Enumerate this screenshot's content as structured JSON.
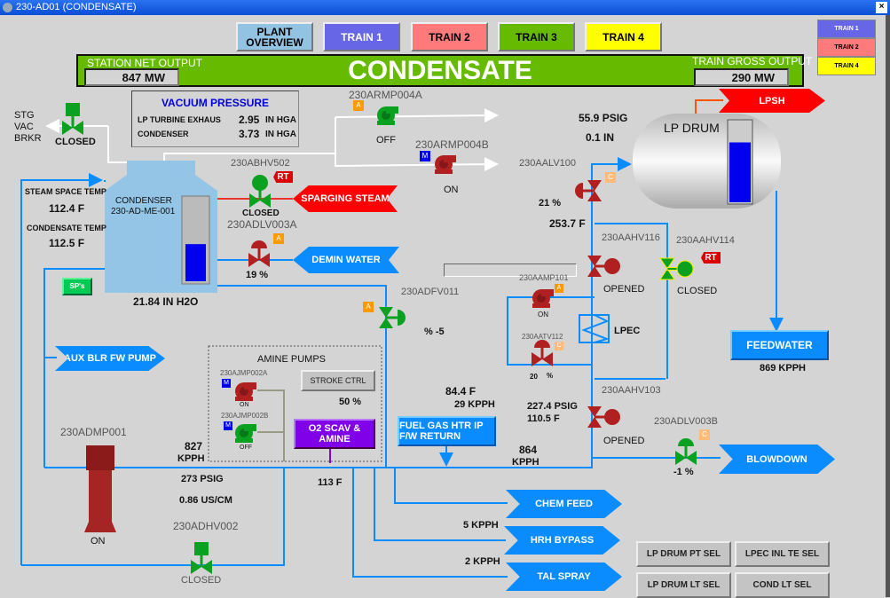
{
  "window": {
    "title": "230-AD01 (CONDENSATE)",
    "close": "×"
  },
  "nav": {
    "plant_overview": "PLANT OVERVIEW",
    "train1": "TRAIN 1",
    "train2": "TRAIN 2",
    "train3": "TRAIN 3",
    "train4": "TRAIN 4",
    "mini": [
      "TRAIN 1",
      "TRAIN 2",
      "TRAIN 4"
    ]
  },
  "colors": {
    "plant_overview": "#93c3e3",
    "train1": "#6666e6",
    "train2": "#ff7b7b",
    "train3": "#66bb00",
    "train4": "#ffff00",
    "pipe_blue": "#0a8cff",
    "valve_green": "#0aa020",
    "valve_red": "#b02020"
  },
  "banner": {
    "title": "CONDENSATE",
    "station_label": "STATION NET OUTPUT",
    "station_value": "847  MW",
    "gross_label": "TRAIN GROSS OUTPUT",
    "gross_value": "290  MW"
  },
  "vacuum": {
    "title": "VACUUM PRESSURE",
    "rows": [
      {
        "label": "LP TURBINE EXHAUS",
        "value": "2.95",
        "unit": "IN HGA"
      },
      {
        "label": "CONDENSER",
        "value": "3.73",
        "unit": "IN HGA"
      }
    ]
  },
  "stg": {
    "label1": "STG",
    "label2": "VAC",
    "label3": "BRKR",
    "status": "CLOSED"
  },
  "condenser": {
    "name": "CONDENSER",
    "tag": "230-AD-ME-001",
    "level_text": "21.84  IN H2O",
    "level_fraction": 0.45,
    "steam_label": "STEAM SPACE TEMP",
    "steam_value": "112.4 F",
    "cond_label": "CONDENSATE TEMP",
    "cond_value": "112.5 F",
    "sps": "SP's"
  },
  "armp004a": {
    "tag": "230ARMP004A",
    "mode": "A",
    "status": "OFF"
  },
  "armp004b": {
    "tag": "230ARMP004B",
    "mode": "M",
    "status": "ON"
  },
  "abhv502": {
    "tag": "230ABHV502",
    "rt": "RT",
    "status": "CLOSED",
    "source": "SPARGING STEAM"
  },
  "adlv003a": {
    "tag": "230ADLV003A",
    "mode": "A",
    "value": "19  %",
    "source": "DEMIN WATER"
  },
  "adfv011": {
    "tag": "230ADFV011",
    "mode": "A",
    "value": "%  -5"
  },
  "aux": "AUX BLR FW PUMP",
  "amine": {
    "title": "AMINE PUMPS",
    "pump_a": {
      "tag": "230AJMP002A",
      "mode": "M",
      "status": "ON"
    },
    "pump_b": {
      "tag": "230AJMP002B",
      "mode": "M",
      "status": "OFF"
    },
    "stroke": "STROKE CTRL",
    "stroke_value": "50 %",
    "o2": "O2 SCAV & AMINE"
  },
  "admp001": {
    "tag": "230ADMP001",
    "status": "ON",
    "flow": "827",
    "flow_unit": "KPPH",
    "pressure": "273  PSIG",
    "conductivity": "0.86  US/CM"
  },
  "adhv002": {
    "tag": "230ADHV002",
    "status": "CLOSED"
  },
  "header_temp": "113  F",
  "fuel_gas": {
    "label": "FUEL GAS HTR IP F/W RETURN",
    "temp": "84.4 F",
    "flow": "29  KPPH"
  },
  "flow864": {
    "value": "864",
    "unit": "KPPH"
  },
  "branches": {
    "chem_feed": "CHEM FEED",
    "hrh_bypass": "HRH BYPASS",
    "hrh_flow": "5  KPPH",
    "tal_spray": "TAL SPRAY",
    "tal_flow": "2  KPPH"
  },
  "lp_drum": {
    "label": "LP DRUM",
    "pressure": "55.9  PSIG",
    "level": "0.1  IN",
    "level_fraction": 0.75,
    "lpsh": "LPSH"
  },
  "aalv100": {
    "tag": "230AALV100",
    "mode": "C",
    "value": "21  %",
    "temp": "253.7 F"
  },
  "aahv116": {
    "tag": "230AAHV116",
    "status": "OPENED"
  },
  "aahv114": {
    "tag": "230AAHV114",
    "rt": "RT",
    "status": "CLOSED"
  },
  "aamp101": {
    "tag": "230AAMP101",
    "mode": "A",
    "status": "ON"
  },
  "aatv112": {
    "tag": "230AATV112",
    "mode": "C",
    "value": "20",
    "unit": "%"
  },
  "lpec": "LPEC",
  "aahv103": {
    "tag": "230AAHV103",
    "status": "OPENED",
    "pressure": "227.4 PSIG",
    "temp": "110.5 F"
  },
  "adlv003b": {
    "tag": "230ADLV003B",
    "mode": "C",
    "value": "-1   %",
    "dest": "BLOWDOWN"
  },
  "feedwater": {
    "label": "FEEDWATER",
    "flow": "869  KPPH"
  },
  "sel": {
    "lp_drum_pt": "LP DRUM PT SEL",
    "lpec_inl_te": "LPEC INL TE SEL",
    "lp_drum_lt": "LP DRUM LT SEL",
    "cond_lt": "COND LT SEL"
  }
}
